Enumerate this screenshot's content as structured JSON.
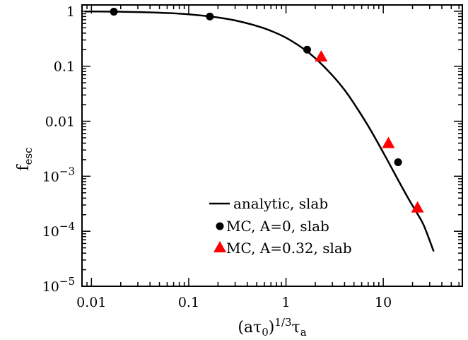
{
  "chart_data": {
    "type": "line",
    "xscale": "log",
    "yscale": "log",
    "xlim": [
      0.008,
      65
    ],
    "ylim": [
      1e-05,
      1.3
    ],
    "grid": false,
    "legend": "bottom-right",
    "xlabel": {
      "main": "(aτ",
      "sub0": "0",
      "close": ")",
      "sup": "1/3",
      "tau": "τ",
      "suba": "a"
    },
    "ylabel": {
      "main": "f",
      "sub": "esc"
    },
    "x_ticks": [
      {
        "value": 0.01,
        "label": "0.01"
      },
      {
        "value": 0.1,
        "label": "0.1"
      },
      {
        "value": 1,
        "label": "1"
      },
      {
        "value": 10,
        "label": "10"
      }
    ],
    "y_ticks": [
      {
        "value": 1,
        "label": "1"
      },
      {
        "value": 0.1,
        "label": "0.1"
      },
      {
        "value": 0.01,
        "label": "0.01"
      },
      {
        "value": 0.001,
        "base": "10",
        "exp": "−3"
      },
      {
        "value": 0.0001,
        "base": "10",
        "exp": "−4"
      },
      {
        "value": 1e-05,
        "base": "10",
        "exp": "−5"
      }
    ],
    "series": [
      {
        "name": "analytic, slab",
        "style": "line",
        "color": "#000000",
        "x": [
          0.0085,
          0.01,
          0.02,
          0.05,
          0.1,
          0.2,
          0.3,
          0.5,
          0.7,
          1.0,
          1.5,
          2.0,
          3.0,
          4.0,
          5.0,
          7.0,
          10.0,
          14.0,
          18.0,
          22.0,
          26.0,
          33.0
        ],
        "y": [
          0.99,
          0.99,
          0.98,
          0.94,
          0.88,
          0.77,
          0.68,
          0.54,
          0.44,
          0.33,
          0.21,
          0.14,
          0.068,
          0.037,
          0.021,
          0.0082,
          0.0027,
          0.0009,
          0.0004,
          0.00022,
          0.00013,
          4.3e-05
        ]
      },
      {
        "name": "MC, A=0, slab",
        "style": "circle",
        "color": "#000000",
        "x": [
          0.017,
          0.165,
          1.65,
          14.2
        ],
        "y": [
          0.98,
          0.8,
          0.2,
          0.0018
        ]
      },
      {
        "name": "MC, A=0.32, slab",
        "style": "triangle",
        "color": "#ff0000",
        "x": [
          2.3,
          11.3,
          22.5
        ],
        "y": [
          0.15,
          0.004,
          0.00027
        ]
      }
    ]
  }
}
